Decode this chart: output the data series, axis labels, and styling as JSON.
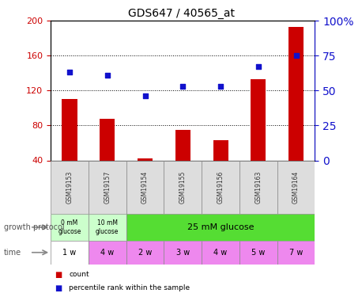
{
  "title": "GDS647 / 40565_at",
  "samples": [
    "GSM19153",
    "GSM19157",
    "GSM19154",
    "GSM19155",
    "GSM19156",
    "GSM19163",
    "GSM19164"
  ],
  "counts": [
    110,
    88,
    42,
    75,
    63,
    133,
    193
  ],
  "percentiles": [
    63,
    61,
    46,
    53,
    53,
    67,
    75
  ],
  "ylim_left": [
    40,
    200
  ],
  "ylim_right": [
    0,
    100
  ],
  "yticks_left": [
    40,
    80,
    120,
    160,
    200
  ],
  "yticks_right": [
    0,
    25,
    50,
    75,
    100
  ],
  "bar_color": "#cc0000",
  "dot_color": "#1111cc",
  "grid_color": "black",
  "time": [
    "1 w",
    "4 w",
    "2 w",
    "3 w",
    "4 w",
    "5 w",
    "7 w"
  ],
  "time_colors": [
    "#ffffff",
    "#ee88ee",
    "#ee88ee",
    "#ee88ee",
    "#ee88ee",
    "#ee88ee",
    "#ee88ee"
  ],
  "protocol_light": "#ccffcc",
  "protocol_bright": "#55dd33",
  "sample_box_color": "#dddddd",
  "axis_color_left": "#cc0000",
  "axis_color_right": "#1111cc"
}
